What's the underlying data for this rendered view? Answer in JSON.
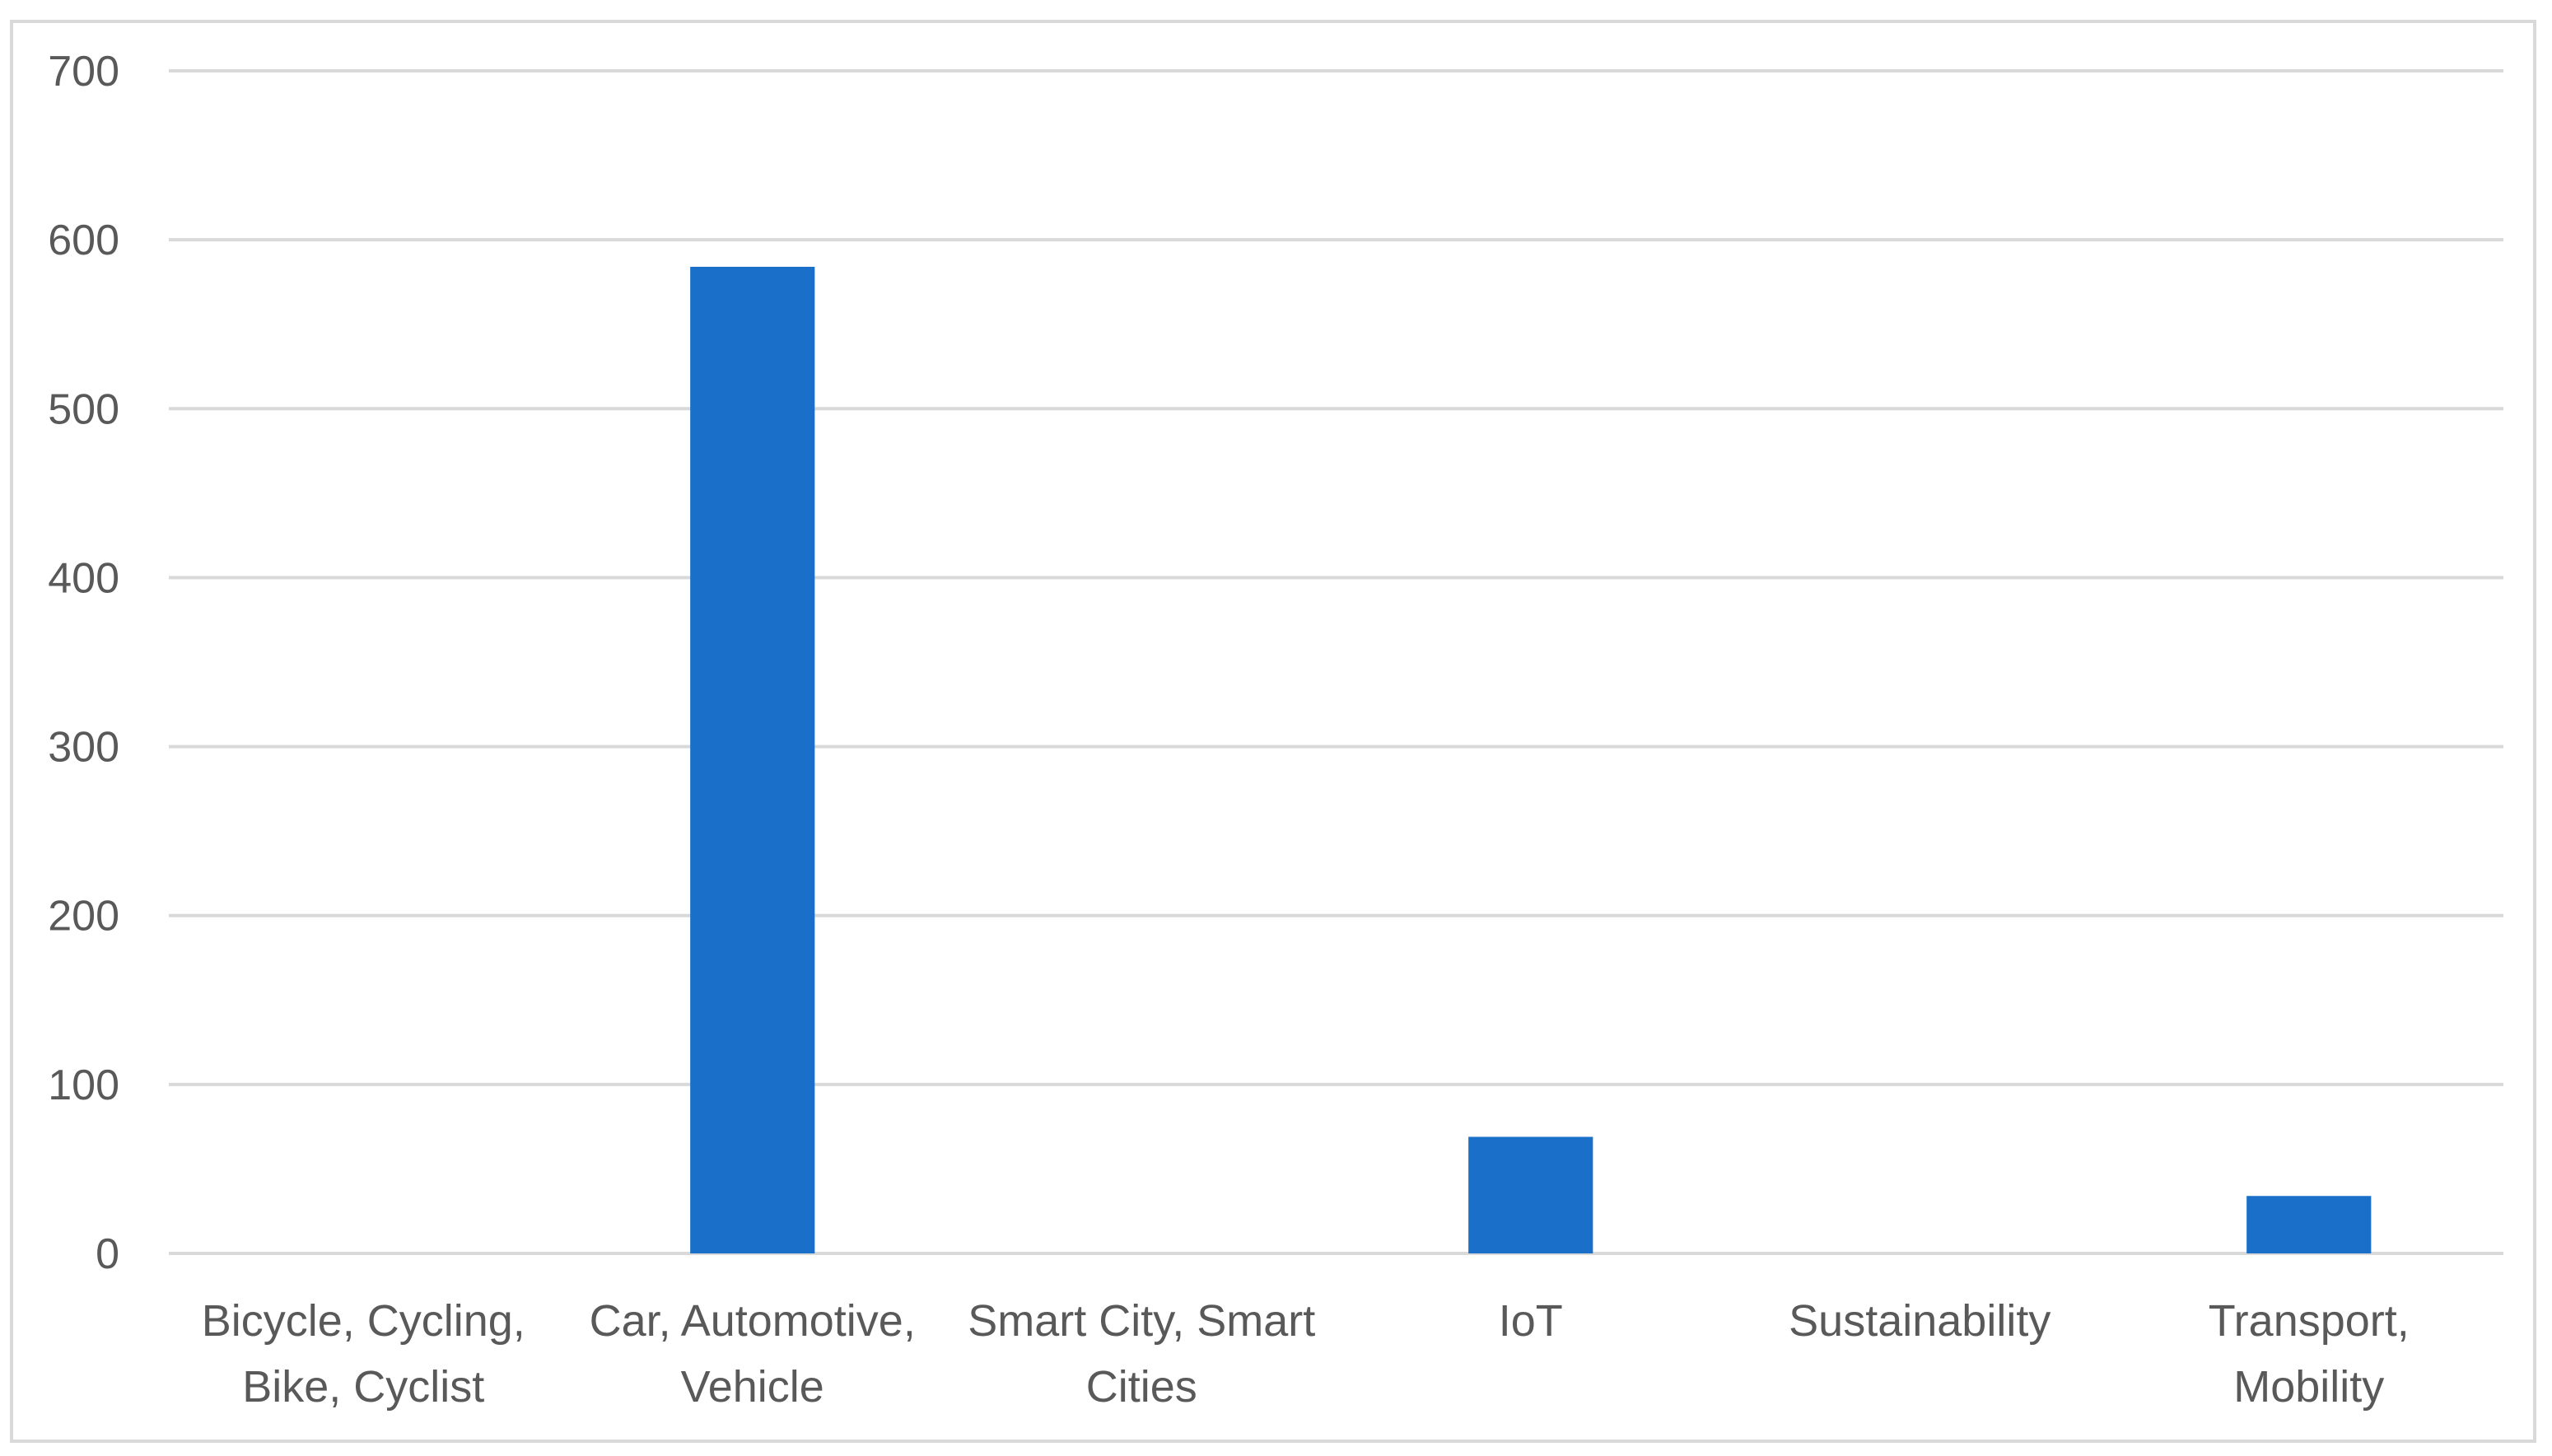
{
  "chart_data": {
    "type": "bar",
    "title": "",
    "xlabel": "",
    "ylabel": "",
    "ylim": [
      0,
      700
    ],
    "yticks": [
      0,
      100,
      200,
      300,
      400,
      500,
      600,
      700
    ],
    "grid": true,
    "legend": "none",
    "bar_color": "#1a70c9",
    "categories": [
      [
        "Bicycle, Cycling,",
        "Bike, Cyclist"
      ],
      [
        "Car, Automotive,",
        "Vehicle"
      ],
      [
        "Smart City, Smart",
        "Cities"
      ],
      [
        "IoT"
      ],
      [
        "Sustainability"
      ],
      [
        "Transport,",
        "Mobility"
      ]
    ],
    "values": [
      0,
      584,
      0,
      69,
      0,
      34
    ]
  }
}
